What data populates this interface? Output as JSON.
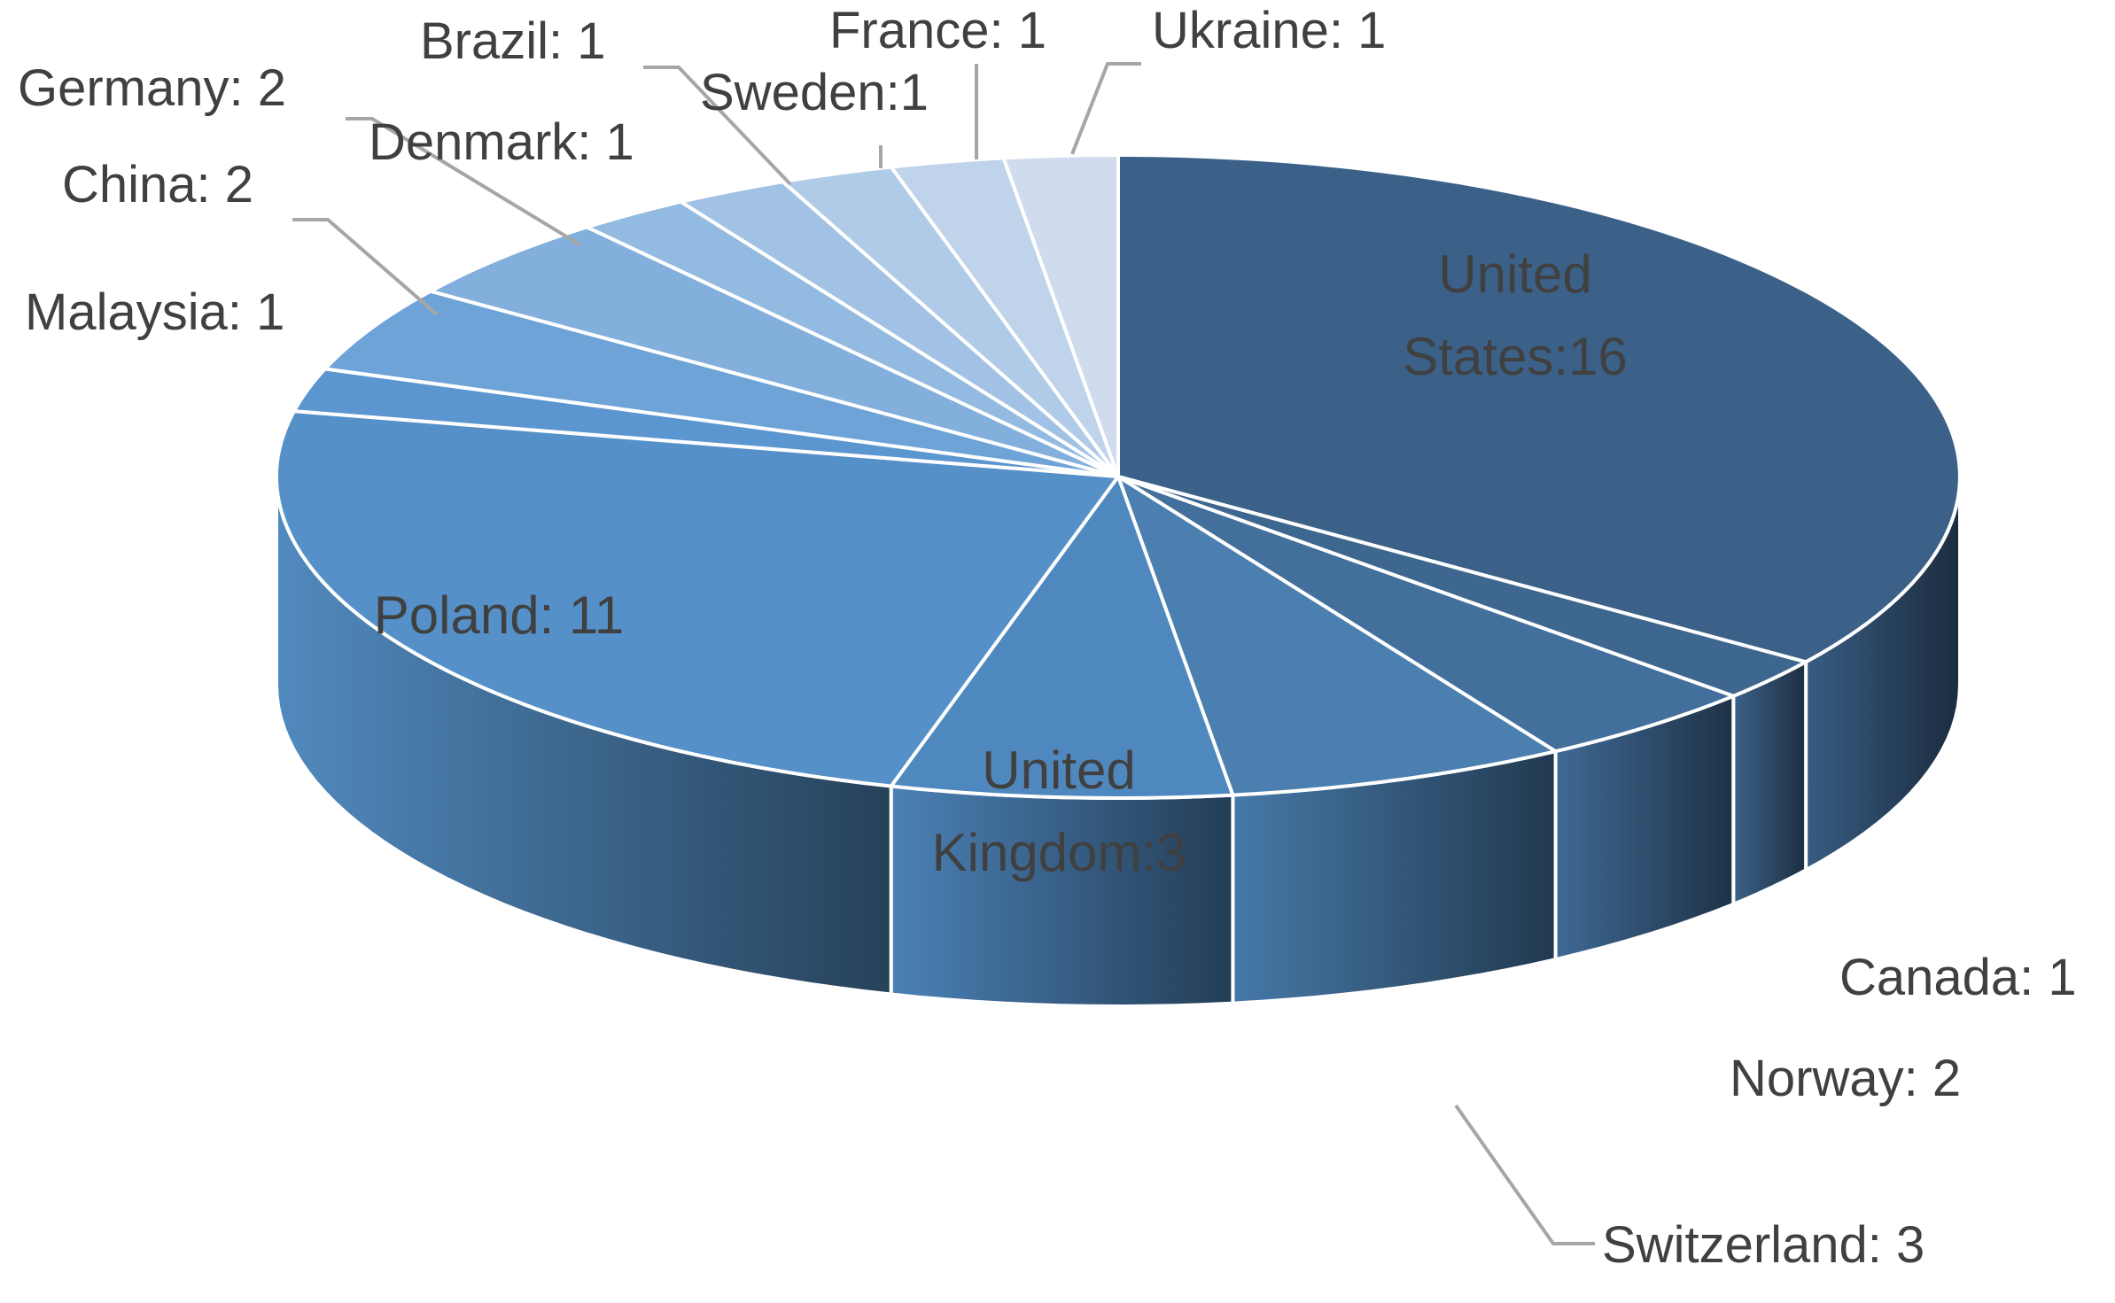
{
  "chart_data": {
    "type": "pie",
    "title": "",
    "slices": [
      {
        "label": "United States",
        "text": "United States:16",
        "lines": [
          "United",
          "States:16"
        ],
        "value": 16,
        "color": "#3b6189",
        "inside": true
      },
      {
        "label": "Canada",
        "text": "Canada: 1",
        "value": 1,
        "color": "#3e678f",
        "inside": false
      },
      {
        "label": "Norway",
        "text": "Norway: 2",
        "value": 2,
        "color": "#426f9c",
        "inside": false
      },
      {
        "label": "Switzerland",
        "text": "Switzerland: 3",
        "value": 3,
        "color": "#4a7fb0",
        "inside": false
      },
      {
        "label": "United Kingdom",
        "text": "United Kingdom:3",
        "lines": [
          "United",
          "Kingdom:3"
        ],
        "value": 3,
        "color": "#4f88bf",
        "inside": true
      },
      {
        "label": "Poland",
        "text": "Poland: 11",
        "value": 11,
        "color": "#5591c8",
        "inside": true
      },
      {
        "label": "Malaysia",
        "text": "Malaysia: 1",
        "value": 1,
        "color": "#5c96d0",
        "inside": false
      },
      {
        "label": "China",
        "text": "China: 2",
        "value": 2,
        "color": "#6ea3d8",
        "inside": false
      },
      {
        "label": "Germany",
        "text": "Germany: 2",
        "value": 2,
        "color": "#82afdc",
        "inside": false
      },
      {
        "label": "Denmark",
        "text": "Denmark: 1",
        "value": 1,
        "color": "#93bae0",
        "inside": false
      },
      {
        "label": "Brazil",
        "text": "Brazil: 1",
        "value": 1,
        "color": "#a1c2e4",
        "inside": false
      },
      {
        "label": "Sweden",
        "text": "Sweden:1",
        "value": 1,
        "color": "#afcbe8",
        "inside": false
      },
      {
        "label": "France",
        "text": "France: 1",
        "value": 1,
        "color": "#bfd3ea",
        "inside": false
      },
      {
        "label": "Ukraine",
        "text": "Ukraine: 1",
        "value": 1,
        "color": "#d0dced",
        "inside": false
      }
    ],
    "total": 46,
    "legend": "none",
    "style": "3d-pie"
  }
}
